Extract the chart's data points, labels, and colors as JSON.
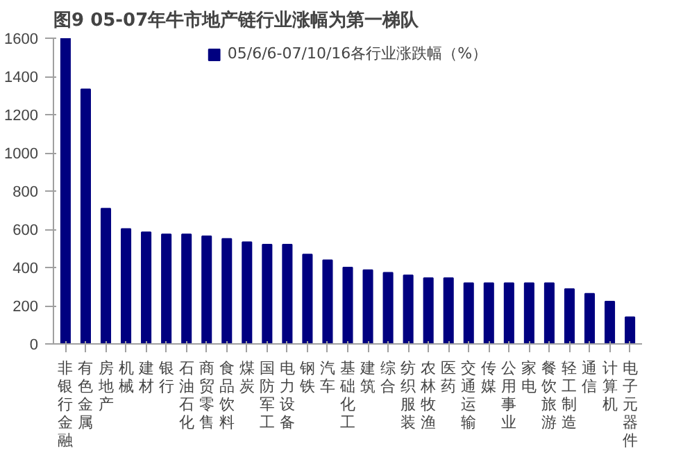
{
  "chart_data": {
    "type": "bar",
    "title": "图9  05-07年牛市地产链行业涨幅为第一梯队",
    "categories": [
      "非银行金融",
      "有色金属",
      "房地产",
      "机械",
      "建材",
      "银行",
      "石油石化",
      "商贸零售",
      "食品饮料",
      "煤炭",
      "国防军工",
      "电力设备",
      "钢铁",
      "汽车",
      "基础化工",
      "建筑",
      "综合",
      "纺织服装",
      "农林牧渔",
      "医药",
      "交通运输",
      "传媒",
      "公用事业",
      "家电",
      "餐饮旅游",
      "轻工制造",
      "通信",
      "计算机",
      "电子元器件"
    ],
    "series": [
      {
        "name": "05/6/6-07/10/16各行业涨跌幅（%）",
        "color": "#000080",
        "values": [
          1600,
          1333,
          708,
          602,
          585,
          574,
          574,
          564,
          550,
          533,
          520,
          520,
          468,
          438,
          400,
          386,
          373,
          359,
          345,
          345,
          318,
          318,
          318,
          318,
          318,
          287,
          263,
          222,
          140
        ]
      }
    ],
    "ylim": [
      0,
      1600
    ],
    "yticks": [
      0,
      200,
      400,
      600,
      800,
      1000,
      1200,
      1400,
      1600
    ],
    "grid": false,
    "legend": "top"
  }
}
